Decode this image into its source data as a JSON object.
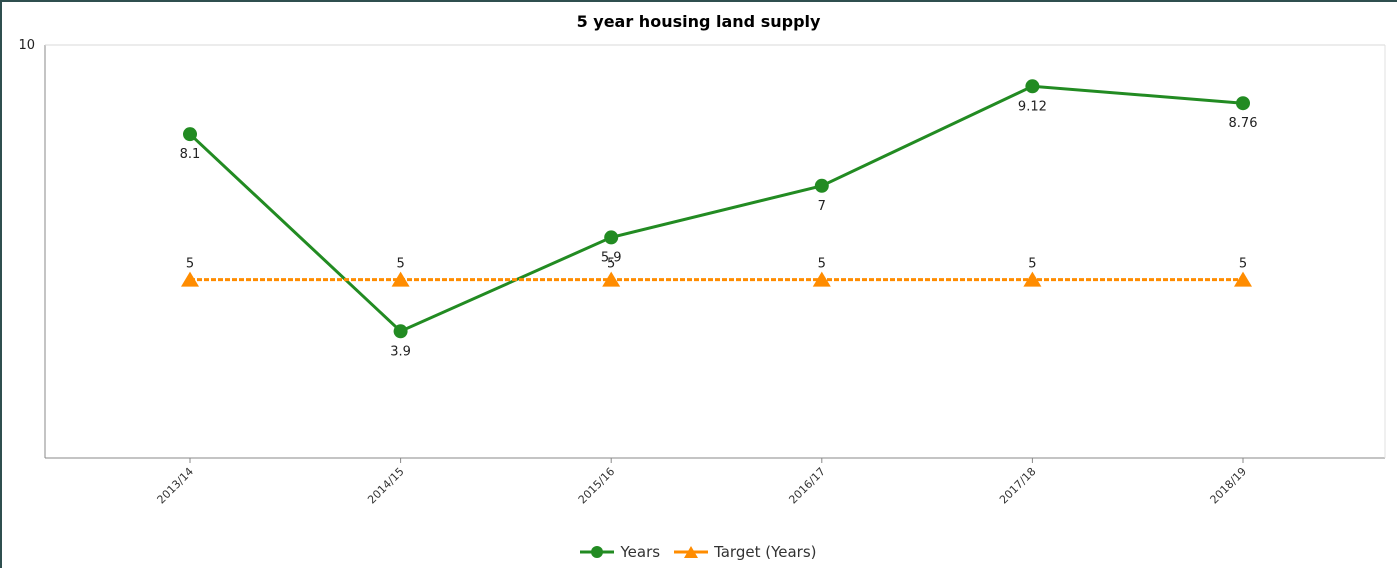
{
  "chart_data": {
    "type": "line",
    "title": "5 year housing land supply",
    "categories": [
      "2013/14",
      "2014/15",
      "2015/16",
      "2016/17",
      "2017/18",
      "2018/19"
    ],
    "ylim": [
      0,
      10
    ],
    "y_tick_labels": [
      "10"
    ],
    "grid": false,
    "legend_position": "bottom-center",
    "series": [
      {
        "name": "Years",
        "values": [
          8.1,
          3.9,
          5.9,
          7,
          9.12,
          8.76
        ],
        "color": "#228b22",
        "marker": "circle",
        "style": "solid",
        "labels": [
          "8.1",
          "3.9",
          "5.9",
          "7",
          "9.12",
          "8.76"
        ]
      },
      {
        "name": "Target (Years)",
        "values": [
          5,
          5,
          5,
          5,
          5,
          5
        ],
        "color": "#ff8c00",
        "marker": "triangle",
        "style": "dashed",
        "labels": [
          "5",
          "5",
          "5",
          "5",
          "5",
          "5"
        ]
      }
    ]
  }
}
